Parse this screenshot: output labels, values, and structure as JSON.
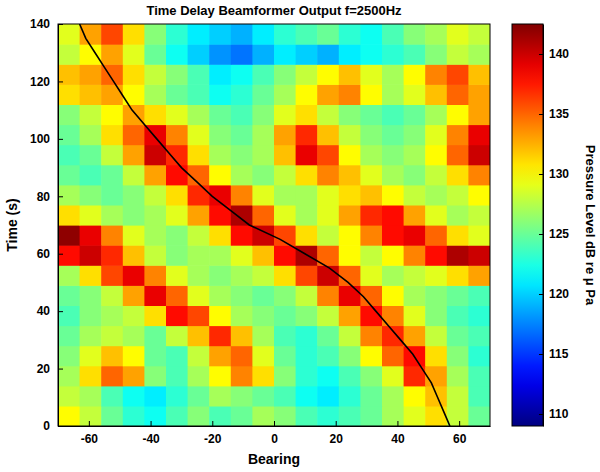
{
  "chart_data": {
    "type": "heatmap",
    "title": "Time Delay Beamformer Output f=2500Hz",
    "x_label": "Bearing",
    "y_label": "Time (s)",
    "xlim": [
      -70,
      70
    ],
    "xticks": [
      -60,
      -40,
      -20,
      0,
      20,
      40,
      60
    ],
    "ylim": [
      0,
      140
    ],
    "yticks": [
      0,
      20,
      40,
      60,
      80,
      100,
      120,
      140
    ],
    "x": [
      -66.5,
      -59.5,
      -52.5,
      -45.5,
      -38.5,
      -31.5,
      -24.5,
      -17.5,
      -10.5,
      -3.5,
      3.5,
      10.5,
      17.5,
      24.5,
      31.5,
      38.5,
      45.5,
      52.5,
      59.5,
      66.5
    ],
    "y": [
      3.5,
      10.5,
      17.5,
      24.5,
      31.5,
      38.5,
      45.5,
      52.5,
      59.5,
      66.5,
      73.5,
      80.5,
      87.5,
      94.5,
      101.5,
      108.5,
      115.5,
      122.5,
      129.5,
      136.5
    ],
    "z": [
      [
        130,
        128,
        125,
        123,
        122,
        124,
        126,
        124,
        125,
        127,
        126,
        124,
        123,
        124,
        125,
        127,
        129,
        131,
        128,
        125
      ],
      [
        128,
        127,
        124,
        122,
        121,
        123,
        125,
        127,
        126,
        125,
        124,
        122,
        121,
        123,
        125,
        127,
        130,
        132,
        128,
        124
      ],
      [
        127,
        131,
        135,
        133,
        126,
        124,
        127,
        130,
        134,
        131,
        126,
        123,
        122,
        124,
        126,
        129,
        137,
        133,
        127,
        124
      ],
      [
        126,
        129,
        132,
        130,
        125,
        124,
        128,
        133,
        135,
        129,
        125,
        123,
        124,
        126,
        130,
        135,
        138,
        131,
        126,
        123
      ],
      [
        125,
        127,
        128,
        127,
        125,
        128,
        132,
        137,
        132,
        127,
        124,
        123,
        125,
        128,
        134,
        137,
        133,
        128,
        125,
        124
      ],
      [
        124,
        126,
        127,
        128,
        131,
        138,
        136,
        130,
        127,
        126,
        125,
        126,
        128,
        133,
        138,
        134,
        129,
        126,
        124,
        123
      ],
      [
        125,
        126,
        128,
        133,
        139,
        135,
        129,
        127,
        126,
        125,
        126,
        128,
        134,
        139,
        135,
        130,
        127,
        126,
        125,
        124
      ],
      [
        127,
        131,
        136,
        139,
        134,
        129,
        127,
        126,
        127,
        128,
        131,
        136,
        140,
        135,
        129,
        127,
        128,
        129,
        131,
        133
      ],
      [
        138,
        140,
        137,
        132,
        128,
        126,
        127,
        127,
        129,
        132,
        138,
        141,
        135,
        130,
        128,
        130,
        134,
        138,
        141,
        140
      ],
      [
        142,
        139,
        134,
        129,
        127,
        126,
        128,
        131,
        138,
        140,
        136,
        131,
        128,
        130,
        134,
        138,
        139,
        135,
        131,
        129
      ],
      [
        131,
        129,
        127,
        126,
        127,
        129,
        133,
        138,
        141,
        135,
        129,
        127,
        129,
        133,
        137,
        138,
        133,
        129,
        127,
        128
      ],
      [
        127,
        126,
        125,
        126,
        128,
        131,
        137,
        139,
        134,
        129,
        127,
        127,
        129,
        131,
        132,
        130,
        128,
        127,
        128,
        130
      ],
      [
        125,
        124,
        125,
        128,
        133,
        138,
        135,
        130,
        127,
        126,
        128,
        131,
        134,
        132,
        129,
        127,
        126,
        128,
        131,
        134
      ],
      [
        124,
        125,
        128,
        133,
        140,
        137,
        131,
        127,
        126,
        127,
        132,
        139,
        136,
        130,
        127,
        126,
        127,
        130,
        135,
        140
      ],
      [
        125,
        127,
        131,
        135,
        139,
        134,
        129,
        126,
        125,
        127,
        133,
        137,
        132,
        128,
        126,
        125,
        126,
        129,
        134,
        139
      ],
      [
        126,
        128,
        130,
        133,
        131,
        129,
        127,
        125,
        124,
        126,
        129,
        131,
        128,
        126,
        125,
        124,
        125,
        127,
        130,
        133
      ],
      [
        131,
        132,
        133,
        130,
        127,
        125,
        124,
        122,
        123,
        125,
        127,
        130,
        133,
        134,
        130,
        127,
        129,
        132,
        135,
        133
      ],
      [
        132,
        133,
        135,
        131,
        128,
        126,
        124,
        121,
        122,
        124,
        126,
        128,
        130,
        132,
        129,
        127,
        130,
        134,
        136,
        132
      ],
      [
        128,
        130,
        133,
        129,
        125,
        122,
        120,
        118,
        117,
        119,
        121,
        120,
        119,
        121,
        122,
        123,
        124,
        126,
        128,
        127
      ],
      [
        129,
        133,
        136,
        131,
        126,
        123,
        121,
        120,
        119,
        121,
        123,
        124,
        125,
        123,
        122,
        124,
        126,
        127,
        129,
        128
      ]
    ],
    "colorbar": {
      "label": "Pressure Level dB re μ Pa",
      "range": [
        109,
        142.5
      ],
      "ticks": [
        110,
        115,
        120,
        125,
        130,
        135,
        140
      ]
    },
    "series": [
      {
        "type": "line",
        "color": "#000000",
        "x": [
          57,
          55,
          53,
          51,
          48,
          45,
          41,
          37,
          33,
          29,
          24,
          18,
          10,
          2,
          -8,
          -14,
          -20,
          -25,
          -30,
          -34,
          -38,
          -42,
          -46,
          -49,
          -52,
          -55,
          -58,
          -61,
          -63
        ],
        "values": [
          0,
          5,
          10,
          15,
          20,
          25,
          30,
          35,
          40,
          45,
          50,
          55,
          60,
          65,
          70,
          75,
          80,
          85,
          90,
          95,
          100,
          105,
          110,
          115,
          120,
          125,
          130,
          135,
          140
        ]
      }
    ]
  }
}
